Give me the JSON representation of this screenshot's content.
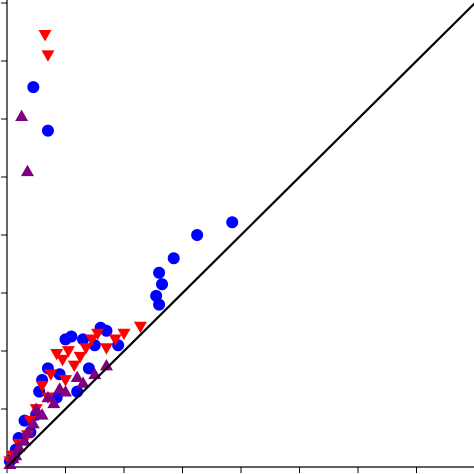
{
  "chart_data": {
    "type": "scatter",
    "title": "",
    "xlabel": "",
    "ylabel": "",
    "xlim": [
      -0.1,
      8.1
    ],
    "ylim": [
      0,
      8.1
    ],
    "x_ticks": [
      0,
      1,
      2,
      3,
      4,
      5,
      6,
      7
    ],
    "y_ticks": [
      1,
      2,
      3,
      4,
      5,
      6,
      7,
      8
    ],
    "grid": false,
    "legend": "none",
    "reference_line": {
      "from": [
        0,
        0
      ],
      "to": [
        8,
        8
      ],
      "color": "#000000"
    },
    "series": [
      {
        "marker": "circle",
        "color": "#0000ff",
        "points": [
          [
            0.45,
            6.55
          ],
          [
            0.7,
            5.8
          ],
          [
            3.85,
            4.22
          ],
          [
            3.25,
            4.0
          ],
          [
            2.85,
            3.6
          ],
          [
            2.6,
            3.35
          ],
          [
            2.65,
            3.15
          ],
          [
            2.55,
            2.95
          ],
          [
            2.6,
            2.8
          ],
          [
            1.6,
            2.4
          ],
          [
            1.7,
            2.35
          ],
          [
            1.0,
            2.2
          ],
          [
            1.1,
            2.25
          ],
          [
            1.3,
            2.2
          ],
          [
            1.5,
            2.1
          ],
          [
            1.9,
            2.1
          ],
          [
            0.7,
            1.7
          ],
          [
            0.6,
            1.5
          ],
          [
            0.9,
            1.6
          ],
          [
            1.4,
            1.7
          ],
          [
            0.55,
            1.3
          ],
          [
            0.85,
            1.2
          ],
          [
            1.2,
            1.3
          ],
          [
            0.3,
            0.8
          ],
          [
            0.5,
            0.9
          ],
          [
            0.2,
            0.5
          ],
          [
            0.4,
            0.6
          ],
          [
            0.15,
            0.3
          ],
          [
            0.1,
            0.15
          ],
          [
            0.05,
            0.1
          ]
        ]
      },
      {
        "marker": "triangle-down",
        "color": "#ff0000",
        "points": [
          [
            0.65,
            7.45
          ],
          [
            0.7,
            7.1
          ],
          [
            2.28,
            2.42
          ],
          [
            2.0,
            2.3
          ],
          [
            1.85,
            2.2
          ],
          [
            1.55,
            2.3
          ],
          [
            1.45,
            2.2
          ],
          [
            1.7,
            2.05
          ],
          [
            1.35,
            2.05
          ],
          [
            1.25,
            1.9
          ],
          [
            1.05,
            2.0
          ],
          [
            0.95,
            1.85
          ],
          [
            0.85,
            1.95
          ],
          [
            1.15,
            1.75
          ],
          [
            0.75,
            1.6
          ],
          [
            1.0,
            1.5
          ],
          [
            0.6,
            1.4
          ],
          [
            0.7,
            1.2
          ],
          [
            0.5,
            1.0
          ],
          [
            0.4,
            0.8
          ],
          [
            0.35,
            0.55
          ],
          [
            0.2,
            0.4
          ],
          [
            0.1,
            0.2
          ],
          [
            0.05,
            0.1
          ]
        ]
      },
      {
        "marker": "triangle-up",
        "color": "#800080",
        "points": [
          [
            0.25,
            6.05
          ],
          [
            0.35,
            5.1
          ],
          [
            1.7,
            1.75
          ],
          [
            1.5,
            1.6
          ],
          [
            1.3,
            1.45
          ],
          [
            1.2,
            1.55
          ],
          [
            1.0,
            1.3
          ],
          [
            0.9,
            1.35
          ],
          [
            0.8,
            1.1
          ],
          [
            0.7,
            1.2
          ],
          [
            0.6,
            0.9
          ],
          [
            0.5,
            1.0
          ],
          [
            0.45,
            0.75
          ],
          [
            0.35,
            0.6
          ],
          [
            0.3,
            0.45
          ],
          [
            0.2,
            0.35
          ],
          [
            0.15,
            0.2
          ],
          [
            0.1,
            0.15
          ],
          [
            0.05,
            0.05
          ]
        ]
      }
    ]
  }
}
